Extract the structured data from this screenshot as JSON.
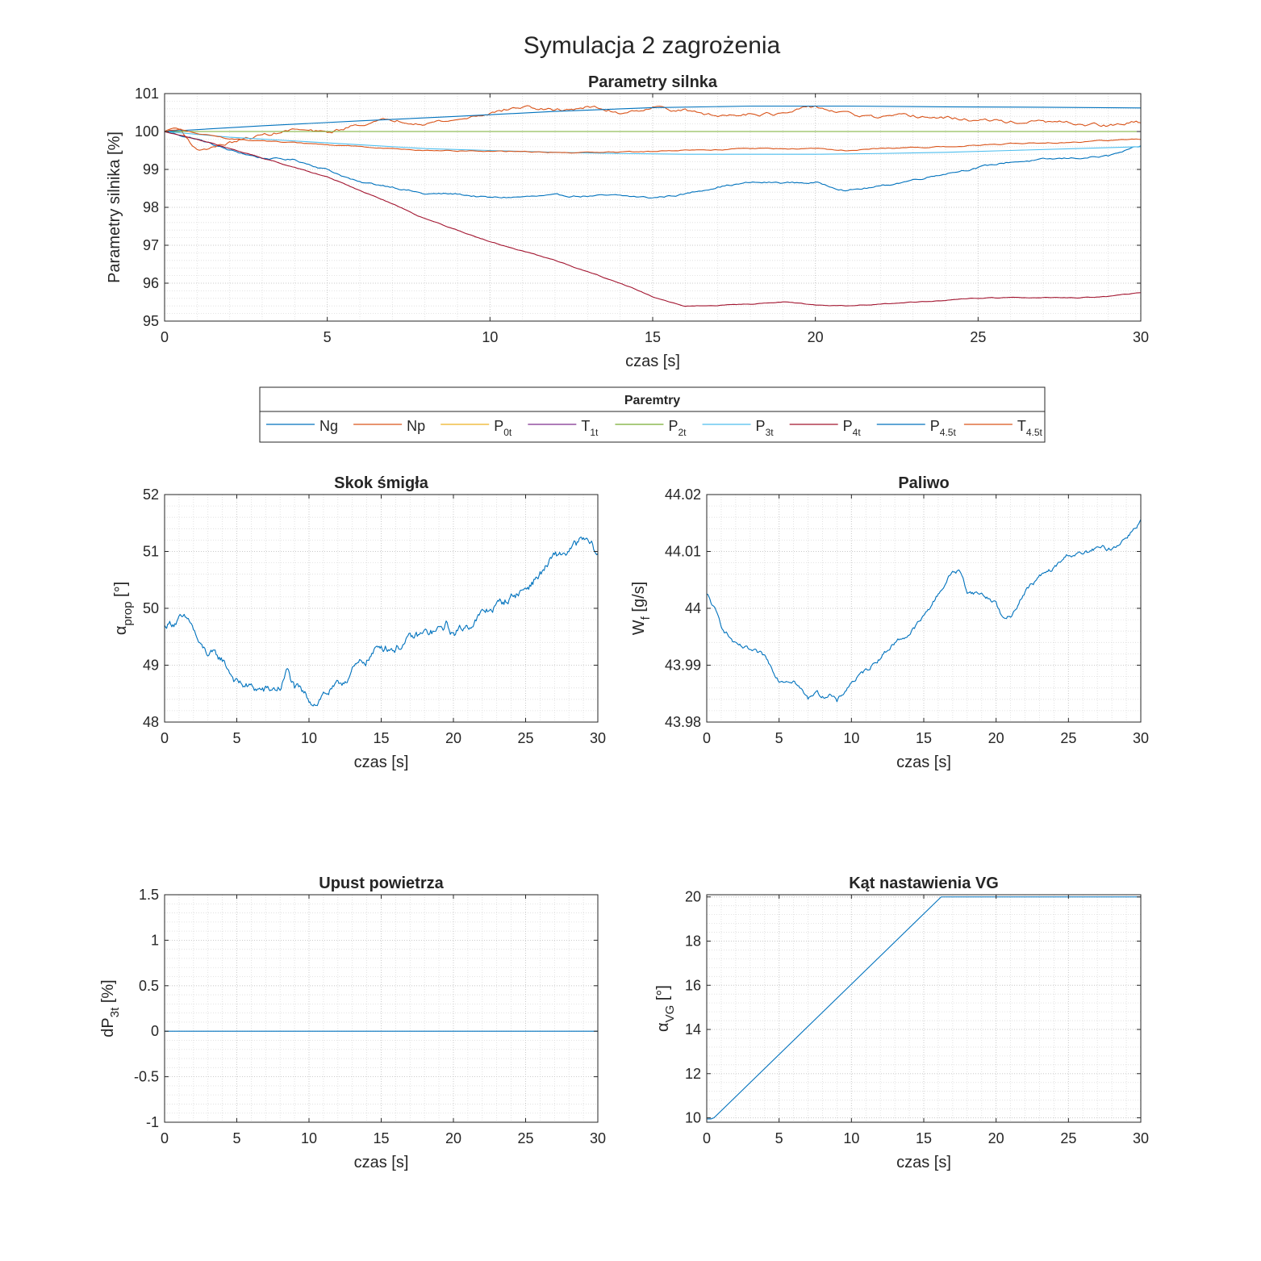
{
  "figure_title": "Symulacja 2 zagrożenia",
  "legend": {
    "title": "Paremtry",
    "entries": [
      {
        "base": "Ng",
        "sub": "",
        "color": "#0072BD"
      },
      {
        "base": "Np",
        "sub": "",
        "color": "#D95319"
      },
      {
        "base": "P",
        "sub": "0t",
        "color": "#EDB120"
      },
      {
        "base": "T",
        "sub": "1t",
        "color": "#7E2F8E"
      },
      {
        "base": "P",
        "sub": "2t",
        "color": "#77AC30"
      },
      {
        "base": "P",
        "sub": "3t",
        "color": "#4DBEEE"
      },
      {
        "base": "P",
        "sub": "4t",
        "color": "#A2142F"
      },
      {
        "base": "P",
        "sub": "4.5t",
        "color": "#0072BD"
      },
      {
        "base": "T",
        "sub": "4.5t",
        "color": "#D95319"
      }
    ]
  },
  "chart_data": [
    {
      "type": "line",
      "title": "Parametry silnka",
      "xlabel": "czas [s]",
      "ylabel": "Parametry silnika [%]",
      "xlim": [
        0,
        30
      ],
      "ylim": [
        95,
        101
      ],
      "xticks": [
        0,
        5,
        10,
        15,
        20,
        25,
        30
      ],
      "yticks": [
        95,
        96,
        97,
        98,
        99,
        100,
        101
      ],
      "grid": "on (major and minor, dotted)",
      "series": [
        {
          "name": "Ng",
          "color": "#0072BD",
          "noise": 0.04,
          "x": [
            0,
            1,
            2,
            3,
            4,
            5,
            6,
            7,
            8,
            9,
            10,
            12,
            14,
            15,
            16,
            17,
            18,
            20,
            21,
            22,
            24,
            25,
            26,
            28,
            29,
            30
          ],
          "y": [
            100,
            99.8,
            99.5,
            99.3,
            99.25,
            99.0,
            98.65,
            98.55,
            98.35,
            98.35,
            98.25,
            98.3,
            98.3,
            98.25,
            98.35,
            98.55,
            98.65,
            98.65,
            98.45,
            98.55,
            98.9,
            99.05,
            99.2,
            99.3,
            99.35,
            99.6
          ]
        },
        {
          "name": "Np",
          "color": "#D95319",
          "noise": 0.07,
          "x": [
            0,
            0.5,
            1,
            2,
            3,
            4,
            5,
            6,
            7,
            8,
            9,
            10,
            11,
            12,
            13,
            14,
            15,
            16,
            17,
            18,
            19,
            20,
            21,
            22,
            23,
            24,
            25,
            26,
            27,
            28,
            29,
            30
          ],
          "y": [
            100,
            100.05,
            99.5,
            99.7,
            99.9,
            100.05,
            99.95,
            100.2,
            100.3,
            100.25,
            100.3,
            100.5,
            100.65,
            100.55,
            100.65,
            100.5,
            100.65,
            100.55,
            100.4,
            100.5,
            100.45,
            100.65,
            100.45,
            100.35,
            100.4,
            100.35,
            100.3,
            100.25,
            100.25,
            100.2,
            100.15,
            100.25
          ]
        },
        {
          "name": "P0t",
          "color": "#EDB120",
          "x": [
            0,
            30
          ],
          "y": [
            100,
            100
          ]
        },
        {
          "name": "T1t",
          "color": "#7E2F8E",
          "x": [
            0,
            30
          ],
          "y": [
            100,
            100
          ]
        },
        {
          "name": "P2t",
          "color": "#77AC30",
          "x": [
            0,
            30
          ],
          "y": [
            100,
            100
          ]
        },
        {
          "name": "P3t",
          "color": "#4DBEEE",
          "x": [
            0,
            2,
            4,
            6,
            8,
            10,
            12,
            14,
            16,
            18,
            20,
            22,
            24,
            26,
            28,
            30
          ],
          "y": [
            100,
            99.85,
            99.75,
            99.65,
            99.55,
            99.5,
            99.45,
            99.42,
            99.4,
            99.4,
            99.4,
            99.42,
            99.45,
            99.5,
            99.55,
            99.6
          ]
        },
        {
          "name": "P4t",
          "color": "#A2142F",
          "noise": 0.015,
          "x": [
            0,
            1,
            2,
            3,
            4,
            5,
            6,
            7,
            8,
            9,
            10,
            11,
            12,
            13,
            14,
            15,
            16,
            17,
            18,
            19,
            20,
            21,
            22,
            23,
            24,
            25,
            26,
            27,
            28,
            29,
            30
          ],
          "y": [
            100,
            99.8,
            99.55,
            99.3,
            99.05,
            98.8,
            98.45,
            98.1,
            97.7,
            97.4,
            97.1,
            96.85,
            96.6,
            96.3,
            96.0,
            95.65,
            95.4,
            95.42,
            95.45,
            95.5,
            95.42,
            95.4,
            95.45,
            95.5,
            95.55,
            95.6,
            95.62,
            95.62,
            95.62,
            95.65,
            95.75
          ]
        },
        {
          "name": "P4.5t",
          "color": "#0072BD",
          "x": [
            0,
            3,
            6,
            9,
            12,
            15,
            18,
            21,
            24,
            27,
            30
          ],
          "y": [
            100,
            100.15,
            100.28,
            100.4,
            100.53,
            100.63,
            100.67,
            100.67,
            100.65,
            100.64,
            100.62
          ]
        },
        {
          "name": "T4.5t",
          "color": "#D95319",
          "noise": 0.02,
          "x": [
            0,
            0.3,
            1,
            2,
            4,
            6,
            8,
            10,
            12,
            14,
            16,
            18,
            20,
            21,
            22,
            24,
            26,
            28,
            30
          ],
          "y": [
            100,
            100.1,
            99.95,
            99.8,
            99.7,
            99.6,
            99.5,
            99.48,
            99.45,
            99.45,
            99.5,
            99.55,
            99.55,
            99.5,
            99.55,
            99.6,
            99.68,
            99.72,
            99.8
          ]
        }
      ]
    },
    {
      "type": "line",
      "title": "Skok śmigła",
      "xlabel": "czas [s]",
      "ylabel_base": "α",
      "ylabel_sub": "prop",
      "ylabel_tail": " [°]",
      "xlim": [
        0,
        30
      ],
      "ylim": [
        48,
        52
      ],
      "xticks": [
        0,
        5,
        10,
        15,
        20,
        25,
        30
      ],
      "yticks": [
        48,
        49,
        50,
        51,
        52
      ],
      "grid": "on (major and minor, dotted)",
      "series": [
        {
          "color": "#0072BD",
          "noise": 0.12,
          "x": [
            0,
            1,
            1.8,
            2.5,
            3,
            4,
            5,
            6,
            7,
            8,
            8.5,
            9,
            10,
            10.5,
            11,
            12,
            13,
            14,
            15,
            16,
            17,
            18,
            19,
            19.5,
            20,
            21,
            22,
            23,
            24,
            25,
            26,
            27,
            28,
            29,
            29.5,
            30
          ],
          "y": [
            49.7,
            49.8,
            49.75,
            49.3,
            49.2,
            49.1,
            48.7,
            48.6,
            48.55,
            48.6,
            48.9,
            48.6,
            48.4,
            48.35,
            48.5,
            48.6,
            48.9,
            49.1,
            49.35,
            49.3,
            49.45,
            49.55,
            49.6,
            49.7,
            49.55,
            49.7,
            49.9,
            50.05,
            50.2,
            50.35,
            50.6,
            50.9,
            51.0,
            51.2,
            51.1,
            50.95
          ]
        }
      ]
    },
    {
      "type": "line",
      "title": "Paliwo",
      "xlabel": "czas [s]",
      "ylabel_base": "W",
      "ylabel_sub": "f",
      "ylabel_tail": " [g/s]",
      "xlim": [
        0,
        30
      ],
      "ylim": [
        43.98,
        44.02
      ],
      "xticks": [
        0,
        5,
        10,
        15,
        20,
        25,
        30
      ],
      "yticks": [
        43.98,
        43.99,
        44,
        44.01,
        44.02
      ],
      "grid": "on (major and minor, dotted)",
      "series": [
        {
          "color": "#0072BD",
          "noise": 0.0006,
          "x": [
            0,
            0.5,
            1,
            2,
            3,
            4,
            5,
            6,
            7,
            7.5,
            8,
            8.5,
            9,
            10,
            11,
            12,
            13,
            14,
            15,
            16,
            17,
            17.5,
            18,
            19,
            20,
            20.5,
            21,
            22,
            23,
            24,
            25,
            26,
            27,
            28,
            29,
            30
          ],
          "y": [
            44.0025,
            44.0,
            43.997,
            43.9935,
            43.9925,
            43.9915,
            43.9875,
            43.9875,
            43.984,
            43.9855,
            43.9845,
            43.985,
            43.9835,
            43.987,
            43.989,
            43.9915,
            43.994,
            43.9955,
            43.9985,
            44.0025,
            44.0065,
            44.0065,
            44.003,
            44.0025,
            44.001,
            43.998,
            43.9985,
            44.003,
            44.0055,
            44.007,
            44.0095,
            44.0095,
            44.0105,
            44.0105,
            44.0125,
            44.0155
          ]
        }
      ]
    },
    {
      "type": "line",
      "title": "Upust powietrza",
      "xlabel": "czas [s]",
      "ylabel_base": "dP",
      "ylabel_sub": "3t",
      "ylabel_tail": " [%]",
      "xlim": [
        0,
        30
      ],
      "ylim": [
        -1,
        1.5
      ],
      "xticks": [
        0,
        5,
        10,
        15,
        20,
        25,
        30
      ],
      "yticks": [
        -1,
        -0.5,
        0,
        0.5,
        1,
        1.5
      ],
      "grid": "on (major and minor, dotted)",
      "series": [
        {
          "color": "#0072BD",
          "x": [
            0,
            30
          ],
          "y": [
            0,
            0
          ]
        }
      ]
    },
    {
      "type": "line",
      "title": "Kąt nastawienia VG",
      "xlabel": "czas [s]",
      "ylabel_base": "α",
      "ylabel_sub": "VG",
      "ylabel_tail": " [°]",
      "xlim": [
        0,
        30
      ],
      "ylim": [
        9.8,
        20.1
      ],
      "xticks": [
        0,
        5,
        10,
        15,
        20,
        25,
        30
      ],
      "yticks": [
        10,
        12,
        14,
        16,
        18,
        20
      ],
      "grid": "on (major and minor, dotted)",
      "series": [
        {
          "color": "#0072BD",
          "x": [
            0,
            0.3,
            0.5,
            16.2,
            30
          ],
          "y": [
            9.95,
            9.95,
            10.0,
            20.0,
            20.0
          ]
        }
      ]
    }
  ]
}
